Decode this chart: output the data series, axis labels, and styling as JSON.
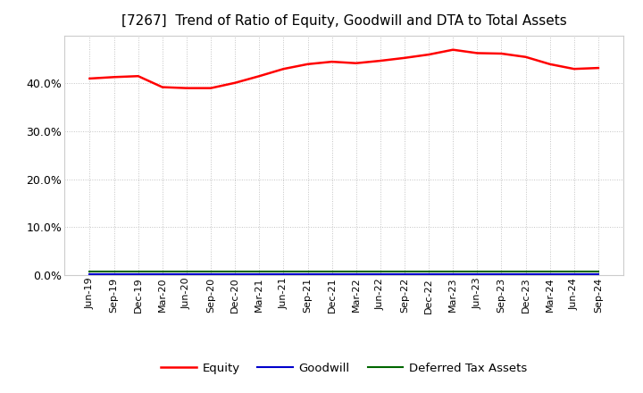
{
  "title": "[7267]  Trend of Ratio of Equity, Goodwill and DTA to Total Assets",
  "x_labels": [
    "Jun-19",
    "Sep-19",
    "Dec-19",
    "Mar-20",
    "Jun-20",
    "Sep-20",
    "Dec-20",
    "Mar-21",
    "Jun-21",
    "Sep-21",
    "Dec-21",
    "Mar-22",
    "Jun-22",
    "Sep-22",
    "Dec-22",
    "Mar-23",
    "Jun-23",
    "Sep-23",
    "Dec-23",
    "Mar-24",
    "Jun-24",
    "Sep-24"
  ],
  "equity": [
    0.41,
    0.413,
    0.415,
    0.392,
    0.39,
    0.39,
    0.401,
    0.415,
    0.43,
    0.44,
    0.445,
    0.442,
    0.447,
    0.453,
    0.46,
    0.47,
    0.463,
    0.462,
    0.455,
    0.44,
    0.43,
    0.432
  ],
  "goodwill": [
    0.002,
    0.002,
    0.002,
    0.002,
    0.002,
    0.002,
    0.002,
    0.002,
    0.002,
    0.002,
    0.002,
    0.002,
    0.002,
    0.002,
    0.002,
    0.002,
    0.002,
    0.002,
    0.002,
    0.002,
    0.002,
    0.002
  ],
  "dta": [
    0.008,
    0.008,
    0.008,
    0.008,
    0.008,
    0.008,
    0.008,
    0.008,
    0.008,
    0.008,
    0.008,
    0.008,
    0.008,
    0.008,
    0.008,
    0.008,
    0.008,
    0.008,
    0.008,
    0.008,
    0.008,
    0.008
  ],
  "equity_color": "#FF0000",
  "goodwill_color": "#0000CC",
  "dta_color": "#006600",
  "ylim": [
    0.0,
    0.5
  ],
  "yticks": [
    0.0,
    0.1,
    0.2,
    0.3,
    0.4
  ],
  "background_color": "#FFFFFF",
  "plot_bg_color": "#FFFFFF",
  "grid_color": "#BBBBBB",
  "title_fontsize": 11,
  "legend_labels": [
    "Equity",
    "Goodwill",
    "Deferred Tax Assets"
  ]
}
